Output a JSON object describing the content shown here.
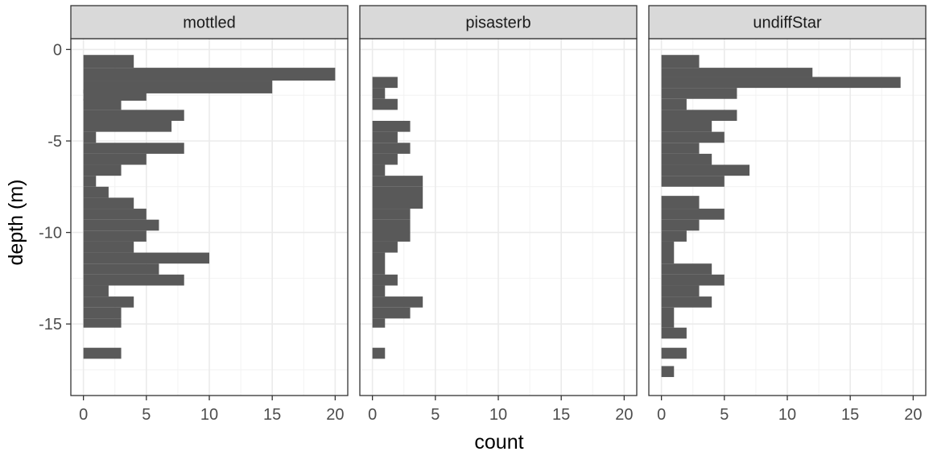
{
  "chart_data": {
    "type": "bar",
    "orientation": "horizontal",
    "xlabel": "count",
    "ylabel": "depth (m)",
    "xlim": [
      -1,
      21
    ],
    "ylim": [
      -18.91,
      0.59
    ],
    "x_ticks": [
      0,
      5,
      10,
      15,
      20
    ],
    "y_ticks": [
      0,
      -5,
      -10,
      -15
    ],
    "bin_width": 0.7,
    "bar_color": "#595959",
    "grid": true,
    "theme": "bw",
    "facets": [
      {
        "label": "mottled",
        "bins": [
          {
            "y0": -1.0,
            "y1": -0.3,
            "count": 4
          },
          {
            "y0": -1.7,
            "y1": -1.0,
            "count": 20
          },
          {
            "y0": -2.4,
            "y1": -1.7,
            "count": 15
          },
          {
            "y0": -2.8,
            "y1": -2.2,
            "count": 5
          },
          {
            "y0": -3.3,
            "y1": -2.7,
            "count": 3
          },
          {
            "y0": -3.9,
            "y1": -3.3,
            "count": 8
          },
          {
            "y0": -4.5,
            "y1": -3.9,
            "count": 7
          },
          {
            "y0": -5.1,
            "y1": -4.5,
            "count": 1
          },
          {
            "y0": -5.7,
            "y1": -5.1,
            "count": 8
          },
          {
            "y0": -6.3,
            "y1": -5.7,
            "count": 5
          },
          {
            "y0": -6.9,
            "y1": -6.3,
            "count": 3
          },
          {
            "y0": -7.5,
            "y1": -6.9,
            "count": 1
          },
          {
            "y0": -8.1,
            "y1": -7.5,
            "count": 2
          },
          {
            "y0": -8.7,
            "y1": -8.1,
            "count": 4
          },
          {
            "y0": -9.3,
            "y1": -8.7,
            "count": 5
          },
          {
            "y0": -9.9,
            "y1": -9.3,
            "count": 6
          },
          {
            "y0": -10.5,
            "y1": -9.9,
            "count": 5
          },
          {
            "y0": -11.1,
            "y1": -10.5,
            "count": 4
          },
          {
            "y0": -11.7,
            "y1": -11.1,
            "count": 10
          },
          {
            "y0": -12.3,
            "y1": -11.7,
            "count": 6
          },
          {
            "y0": -12.9,
            "y1": -12.3,
            "count": 8
          },
          {
            "y0": -13.5,
            "y1": -12.9,
            "count": 2
          },
          {
            "y0": -14.1,
            "y1": -13.5,
            "count": 4
          },
          {
            "y0": -14.7,
            "y1": -14.1,
            "count": 3
          },
          {
            "y0": -15.2,
            "y1": -14.7,
            "count": 3
          },
          {
            "y0": -16.9,
            "y1": -16.3,
            "count": 3
          }
        ]
      },
      {
        "label": "pisasterb",
        "bins": [
          {
            "y0": -2.1,
            "y1": -1.5,
            "count": 2
          },
          {
            "y0": -2.7,
            "y1": -2.1,
            "count": 1
          },
          {
            "y0": -3.3,
            "y1": -2.7,
            "count": 2
          },
          {
            "y0": -4.5,
            "y1": -3.9,
            "count": 3
          },
          {
            "y0": -5.1,
            "y1": -4.5,
            "count": 2
          },
          {
            "y0": -5.7,
            "y1": -5.1,
            "count": 3
          },
          {
            "y0": -6.3,
            "y1": -5.7,
            "count": 2
          },
          {
            "y0": -6.9,
            "y1": -6.3,
            "count": 1
          },
          {
            "y0": -7.5,
            "y1": -6.9,
            "count": 4
          },
          {
            "y0": -8.7,
            "y1": -7.5,
            "count": 4
          },
          {
            "y0": -9.3,
            "y1": -8.7,
            "count": 3
          },
          {
            "y0": -10.5,
            "y1": -9.3,
            "count": 3
          },
          {
            "y0": -11.1,
            "y1": -10.5,
            "count": 2
          },
          {
            "y0": -12.3,
            "y1": -11.1,
            "count": 1
          },
          {
            "y0": -12.9,
            "y1": -12.3,
            "count": 2
          },
          {
            "y0": -13.5,
            "y1": -12.9,
            "count": 1
          },
          {
            "y0": -14.1,
            "y1": -13.5,
            "count": 4
          },
          {
            "y0": -14.7,
            "y1": -14.1,
            "count": 3
          },
          {
            "y0": -15.2,
            "y1": -14.7,
            "count": 1
          },
          {
            "y0": -16.9,
            "y1": -16.3,
            "count": 1
          }
        ]
      },
      {
        "label": "undiffStar",
        "bins": [
          {
            "y0": -1.0,
            "y1": -0.3,
            "count": 3
          },
          {
            "y0": -1.5,
            "y1": -1.0,
            "count": 12
          },
          {
            "y0": -2.1,
            "y1": -1.5,
            "count": 19
          },
          {
            "y0": -2.7,
            "y1": -2.1,
            "count": 6
          },
          {
            "y0": -3.3,
            "y1": -2.7,
            "count": 2
          },
          {
            "y0": -3.9,
            "y1": -3.3,
            "count": 6
          },
          {
            "y0": -4.5,
            "y1": -3.9,
            "count": 4
          },
          {
            "y0": -5.1,
            "y1": -4.5,
            "count": 5
          },
          {
            "y0": -5.7,
            "y1": -5.1,
            "count": 3
          },
          {
            "y0": -6.3,
            "y1": -5.7,
            "count": 4
          },
          {
            "y0": -6.9,
            "y1": -6.3,
            "count": 7
          },
          {
            "y0": -7.5,
            "y1": -6.9,
            "count": 5
          },
          {
            "y0": -8.7,
            "y1": -8.0,
            "count": 3
          },
          {
            "y0": -9.3,
            "y1": -8.7,
            "count": 5
          },
          {
            "y0": -9.9,
            "y1": -9.3,
            "count": 3
          },
          {
            "y0": -10.5,
            "y1": -9.9,
            "count": 2
          },
          {
            "y0": -11.7,
            "y1": -10.5,
            "count": 1
          },
          {
            "y0": -12.3,
            "y1": -11.7,
            "count": 4
          },
          {
            "y0": -12.9,
            "y1": -12.3,
            "count": 5
          },
          {
            "y0": -13.5,
            "y1": -12.9,
            "count": 3
          },
          {
            "y0": -14.1,
            "y1": -13.5,
            "count": 4
          },
          {
            "y0": -15.2,
            "y1": -14.1,
            "count": 1
          },
          {
            "y0": -15.8,
            "y1": -15.2,
            "count": 2
          },
          {
            "y0": -16.9,
            "y1": -16.3,
            "count": 2
          },
          {
            "y0": -17.9,
            "y1": -17.3,
            "count": 1
          }
        ]
      }
    ]
  }
}
